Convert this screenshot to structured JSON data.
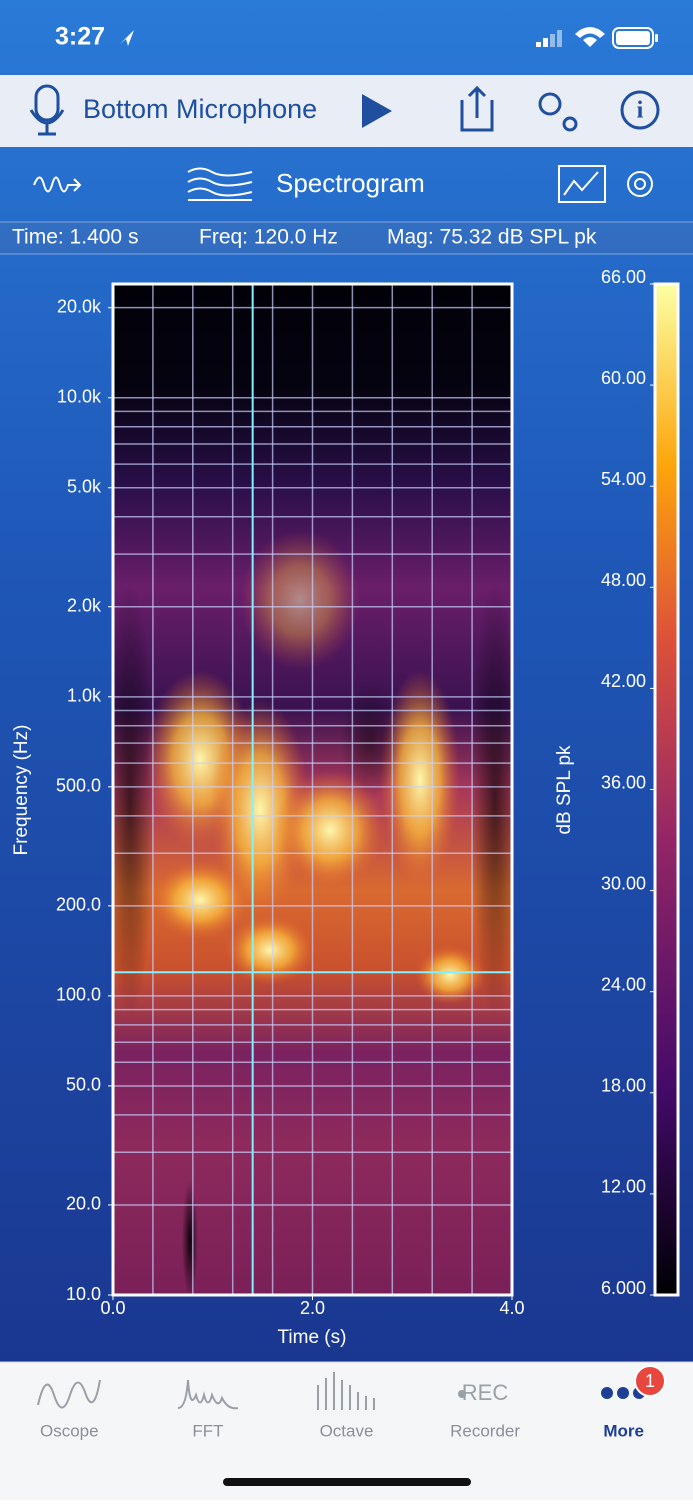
{
  "status_bar": {
    "time": "3:27"
  },
  "toolbar": {
    "source": "Bottom Microphone"
  },
  "view": {
    "title": "Spectrogram"
  },
  "readout": {
    "time": "Time: 1.400 s",
    "freq": "Freq: 120.0 Hz",
    "mag": "Mag: 75.32 dB SPL pk"
  },
  "chart_data": {
    "type": "spectrogram",
    "xlabel": "Time (s)",
    "ylabel": "Frequency (Hz)",
    "colorbar_label": "dB SPL pk",
    "xlim": [
      0,
      4
    ],
    "ylim": [
      10,
      24000
    ],
    "log_y": true,
    "clim": [
      6,
      66
    ],
    "xticks": [
      {
        "value": 0,
        "label": "0.0"
      },
      {
        "value": 2,
        "label": "2.0"
      },
      {
        "value": 4,
        "label": "4.0"
      }
    ],
    "yticks": [
      {
        "value": 10,
        "label": "10.0"
      },
      {
        "value": 20,
        "label": "20.0"
      },
      {
        "value": 50,
        "label": "50.0"
      },
      {
        "value": 100,
        "label": "100.0"
      },
      {
        "value": 200,
        "label": "200.0"
      },
      {
        "value": 500,
        "label": "500.0"
      },
      {
        "value": 1000,
        "label": "1.0k"
      },
      {
        "value": 2000,
        "label": "2.0k"
      },
      {
        "value": 5000,
        "label": "5.0k"
      },
      {
        "value": 10000,
        "label": "10.0k"
      },
      {
        "value": 20000,
        "label": "20.0k"
      }
    ],
    "cticks": [
      {
        "value": 6,
        "label": "6.000"
      },
      {
        "value": 12,
        "label": "12.00"
      },
      {
        "value": 18,
        "label": "18.00"
      },
      {
        "value": 24,
        "label": "24.00"
      },
      {
        "value": 30,
        "label": "30.00"
      },
      {
        "value": 36,
        "label": "36.00"
      },
      {
        "value": 42,
        "label": "42.00"
      },
      {
        "value": 48,
        "label": "48.00"
      },
      {
        "value": 54,
        "label": "54.00"
      },
      {
        "value": 60,
        "label": "60.00"
      },
      {
        "value": 66,
        "label": "66.00"
      }
    ],
    "xgrid": [
      0.4,
      0.8,
      1.2,
      1.6,
      2.0,
      2.4,
      2.8,
      3.2,
      3.6
    ],
    "ygrid": [
      20,
      30,
      40,
      50,
      60,
      70,
      80,
      90,
      100,
      200,
      300,
      400,
      500,
      600,
      700,
      800,
      900,
      1000,
      2000,
      3000,
      4000,
      5000,
      6000,
      7000,
      8000,
      9000,
      10000,
      20000
    ],
    "cursor": {
      "x": 1.4,
      "y": 120
    }
  },
  "tabs": [
    {
      "label": "Oscope"
    },
    {
      "label": "FFT"
    },
    {
      "label": "Octave"
    },
    {
      "label": "Recorder",
      "icon": "REC"
    },
    {
      "label": "More",
      "badge": "1"
    }
  ]
}
